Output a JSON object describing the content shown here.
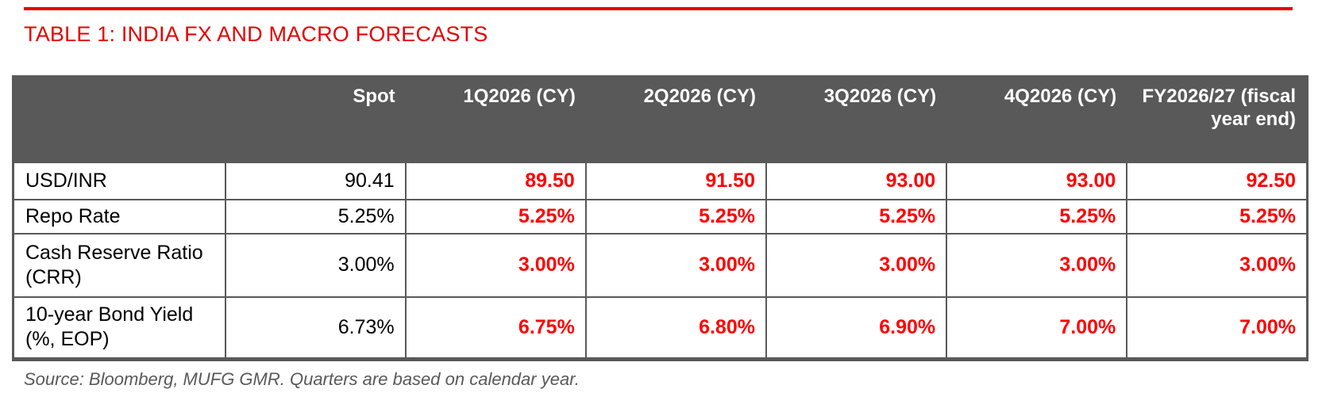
{
  "page": {
    "title": "TABLE 1: INDIA FX AND MACRO FORECASTS",
    "source_note": "Source: Bloomberg, MUFG GMR. Quarters are based on calendar year."
  },
  "colors": {
    "accent_red": "#e60000",
    "value_red": "#ff0000",
    "header_bg": "#595959",
    "border": "#595959",
    "text": "#000000",
    "source_text": "#595959",
    "page_bg": "#ffffff"
  },
  "table": {
    "columns": [
      "",
      "Spot",
      "1Q2026 (CY)",
      "2Q2026 (CY)",
      "3Q2026 (CY)",
      "4Q2026 (CY)",
      "FY2026/27 (fiscal year end)"
    ],
    "rows": [
      {
        "label": "USD/INR",
        "spot": "90.41",
        "forecasts": [
          "89.50",
          "91.50",
          "93.00",
          "93.00",
          "92.50"
        ]
      },
      {
        "label": "Repo Rate",
        "spot": "5.25%",
        "forecasts": [
          "5.25%",
          "5.25%",
          "5.25%",
          "5.25%",
          "5.25%"
        ]
      },
      {
        "label": "Cash Reserve Ratio (CRR)",
        "spot": "3.00%",
        "forecasts": [
          "3.00%",
          "3.00%",
          "3.00%",
          "3.00%",
          "3.00%"
        ]
      },
      {
        "label": "10-year Bond Yield (%, EOP)",
        "spot": "6.73%",
        "forecasts": [
          "6.75%",
          "6.80%",
          "6.90%",
          "7.00%",
          "7.00%"
        ]
      }
    ]
  }
}
